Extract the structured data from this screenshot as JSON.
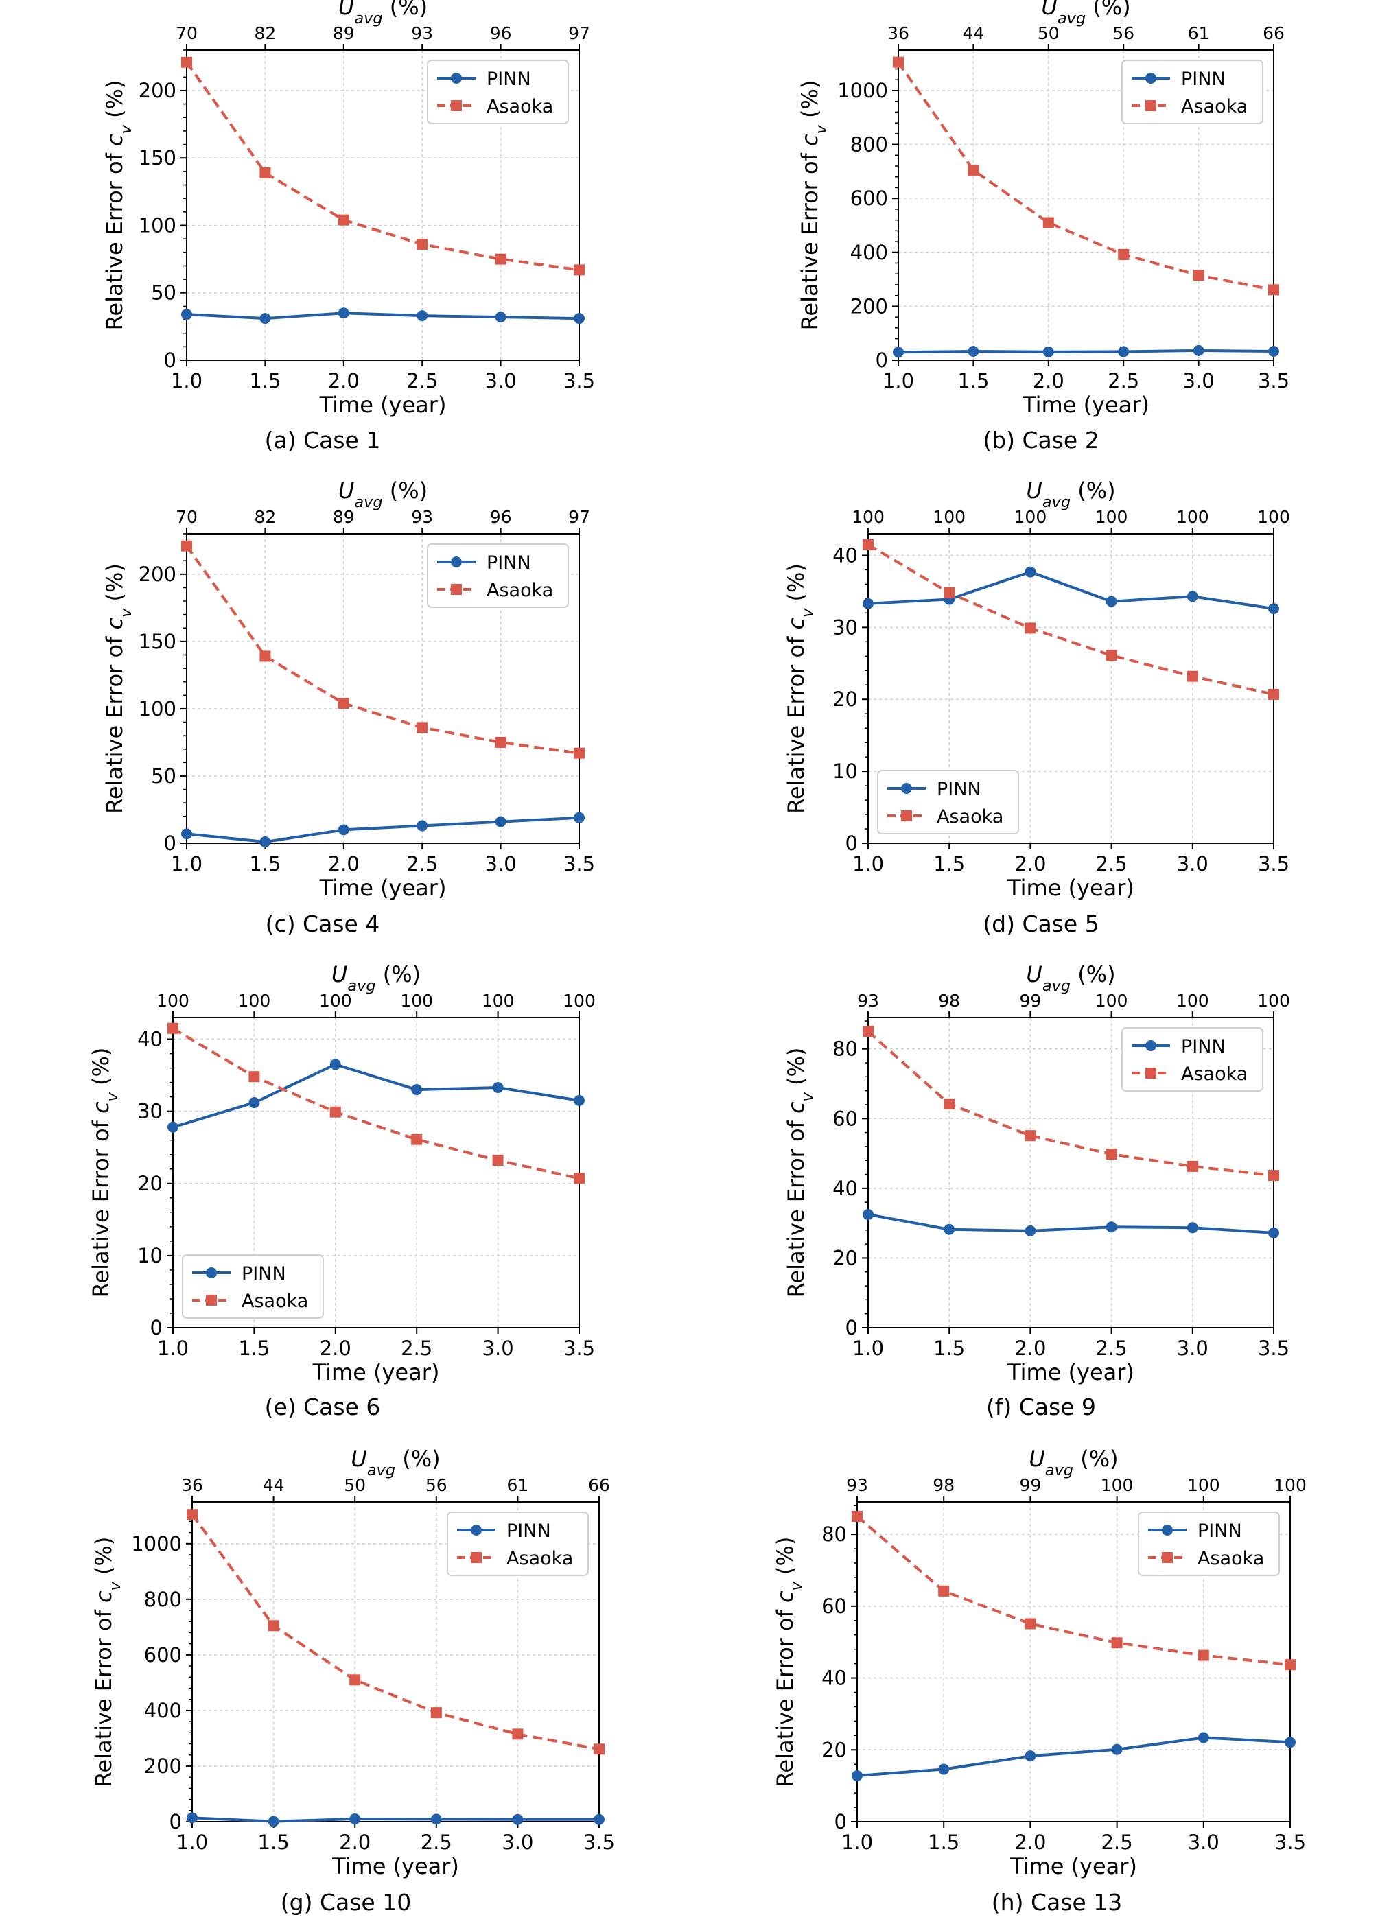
{
  "legend_names": {
    "pinn": "PINN",
    "asaoka": "Asaoka"
  },
  "colors": {
    "pinn": "#2160a8",
    "asaoka": "#d9584a",
    "grid": "#cfcfcf"
  },
  "chart_data": [
    {
      "type": "line",
      "caption": "(a) Case 1",
      "x": [
        1.0,
        1.5,
        2.0,
        2.5,
        3.0,
        3.5
      ],
      "xticks": [
        "1.0",
        "1.5",
        "2.0",
        "2.5",
        "3.0",
        "3.5"
      ],
      "xlabel": "Time (year)",
      "ylabel": "Relative Error of c_v (%)",
      "top_xlabel": "U_avg (%)",
      "top_ticks": [
        "70",
        "82",
        "89",
        "93",
        "96",
        "97"
      ],
      "xlim": [
        1.0,
        3.5
      ],
      "ylim": [
        0,
        230
      ],
      "yticks": [
        0,
        50,
        100,
        150,
        200
      ],
      "legend": "top-right",
      "grid": true,
      "series": [
        {
          "name": "PINN",
          "values": [
            34,
            31,
            35,
            33,
            32,
            31
          ]
        },
        {
          "name": "Asaoka",
          "values": [
            221,
            139,
            104,
            86,
            75,
            67
          ]
        }
      ]
    },
    {
      "type": "line",
      "caption": "(b) Case 2",
      "x": [
        1.0,
        1.5,
        2.0,
        2.5,
        3.0,
        3.5
      ],
      "xticks": [
        "1.0",
        "1.5",
        "2.0",
        "2.5",
        "3.0",
        "3.5"
      ],
      "xlabel": "Time (year)",
      "ylabel": "Relative Error of c_v (%)",
      "top_xlabel": "U_avg (%)",
      "top_ticks": [
        "36",
        "44",
        "50",
        "56",
        "61",
        "66"
      ],
      "xlim": [
        1.0,
        3.5
      ],
      "ylim": [
        0,
        1150
      ],
      "yticks": [
        0,
        200,
        400,
        600,
        800,
        1000
      ],
      "legend": "top-right",
      "grid": true,
      "series": [
        {
          "name": "PINN",
          "values": [
            30,
            33,
            31,
            32,
            36,
            33
          ]
        },
        {
          "name": "Asaoka",
          "values": [
            1105,
            705,
            510,
            392,
            315,
            261
          ]
        }
      ]
    },
    {
      "type": "line",
      "caption": "(c) Case 4",
      "x": [
        1.0,
        1.5,
        2.0,
        2.5,
        3.0,
        3.5
      ],
      "xticks": [
        "1.0",
        "1.5",
        "2.0",
        "2.5",
        "3.0",
        "3.5"
      ],
      "xlabel": "Time (year)",
      "ylabel": "Relative Error of c_v (%)",
      "top_xlabel": "U_avg (%)",
      "top_ticks": [
        "70",
        "82",
        "89",
        "93",
        "96",
        "97"
      ],
      "xlim": [
        1.0,
        3.5
      ],
      "ylim": [
        0,
        230
      ],
      "yticks": [
        0,
        50,
        100,
        150,
        200
      ],
      "legend": "top-right",
      "grid": true,
      "series": [
        {
          "name": "PINN",
          "values": [
            7,
            1,
            10,
            13,
            16,
            19
          ]
        },
        {
          "name": "Asaoka",
          "values": [
            221,
            139,
            104,
            86,
            75,
            67
          ]
        }
      ]
    },
    {
      "type": "line",
      "caption": "(d) Case 5",
      "x": [
        1.0,
        1.5,
        2.0,
        2.5,
        3.0,
        3.5
      ],
      "xticks": [
        "1.0",
        "1.5",
        "2.0",
        "2.5",
        "3.0",
        "3.5"
      ],
      "xlabel": "Time (year)",
      "ylabel": "Relative Error of c_v (%)",
      "top_xlabel": "U_avg (%)",
      "top_ticks": [
        "100",
        "100",
        "100",
        "100",
        "100",
        "100"
      ],
      "xlim": [
        1.0,
        3.5
      ],
      "ylim": [
        0,
        43
      ],
      "yticks": [
        0,
        10,
        20,
        30,
        40
      ],
      "legend": "bottom-left",
      "grid": true,
      "series": [
        {
          "name": "PINN",
          "values": [
            33.3,
            33.9,
            37.7,
            33.6,
            34.3,
            32.6
          ]
        },
        {
          "name": "Asaoka",
          "values": [
            41.5,
            34.8,
            29.9,
            26.1,
            23.2,
            20.7
          ]
        }
      ]
    },
    {
      "type": "line",
      "caption": "(e) Case 6",
      "x": [
        1.0,
        1.5,
        2.0,
        2.5,
        3.0,
        3.5
      ],
      "xticks": [
        "1.0",
        "1.5",
        "2.0",
        "2.5",
        "3.0",
        "3.5"
      ],
      "xlabel": "Time (year)",
      "ylabel": "Relative Error of c_v (%)",
      "top_xlabel": "U_avg (%)",
      "top_ticks": [
        "100",
        "100",
        "100",
        "100",
        "100",
        "100"
      ],
      "xlim": [
        1.0,
        3.5
      ],
      "ylim": [
        0,
        43
      ],
      "yticks": [
        0,
        10,
        20,
        30,
        40
      ],
      "legend": "bottom-left",
      "grid": true,
      "series": [
        {
          "name": "PINN",
          "values": [
            27.8,
            31.2,
            36.5,
            33.0,
            33.3,
            31.5
          ]
        },
        {
          "name": "Asaoka",
          "values": [
            41.5,
            34.8,
            29.9,
            26.1,
            23.2,
            20.7
          ]
        }
      ]
    },
    {
      "type": "line",
      "caption": "(f) Case 9",
      "x": [
        1.0,
        1.5,
        2.0,
        2.5,
        3.0,
        3.5
      ],
      "xticks": [
        "1.0",
        "1.5",
        "2.0",
        "2.5",
        "3.0",
        "3.5"
      ],
      "xlabel": "Time (year)",
      "ylabel": "Relative Error of c_v (%)",
      "top_xlabel": "U_avg (%)",
      "top_ticks": [
        "93",
        "98",
        "99",
        "100",
        "100",
        "100"
      ],
      "xlim": [
        1.0,
        3.5
      ],
      "ylim": [
        0,
        89
      ],
      "yticks": [
        0,
        20,
        40,
        60,
        80
      ],
      "legend": "top-right",
      "grid": true,
      "series": [
        {
          "name": "PINN",
          "values": [
            32.5,
            28.2,
            27.8,
            28.9,
            28.7,
            27.2
          ]
        },
        {
          "name": "Asaoka",
          "values": [
            85,
            64.2,
            55.1,
            49.8,
            46.3,
            43.7
          ]
        }
      ]
    },
    {
      "type": "line",
      "caption": "(g) Case 10",
      "x": [
        1.0,
        1.5,
        2.0,
        2.5,
        3.0,
        3.5
      ],
      "xticks": [
        "1.0",
        "1.5",
        "2.0",
        "2.5",
        "3.0",
        "3.5"
      ],
      "xlabel": "Time (year)",
      "ylabel": "Relative Error of c_v (%)",
      "top_xlabel": "U_avg (%)",
      "top_ticks": [
        "36",
        "44",
        "50",
        "56",
        "61",
        "66"
      ],
      "xlim": [
        1.0,
        3.5
      ],
      "ylim": [
        0,
        1150
      ],
      "yticks": [
        0,
        200,
        400,
        600,
        800,
        1000
      ],
      "legend": "top-right",
      "grid": true,
      "series": [
        {
          "name": "PINN",
          "values": [
            14,
            1,
            10,
            9,
            8,
            8
          ]
        },
        {
          "name": "Asaoka",
          "values": [
            1105,
            705,
            510,
            392,
            315,
            261
          ]
        }
      ]
    },
    {
      "type": "line",
      "caption": "(h) Case 13",
      "x": [
        1.0,
        1.5,
        2.0,
        2.5,
        3.0,
        3.5
      ],
      "xticks": [
        "1.0",
        "1.5",
        "2.0",
        "2.5",
        "3.0",
        "3.5"
      ],
      "xlabel": "Time (year)",
      "ylabel": "Relative Error of c_v (%)",
      "top_xlabel": "U_avg (%)",
      "top_ticks": [
        "93",
        "98",
        "99",
        "100",
        "100",
        "100"
      ],
      "xlim": [
        1.0,
        3.5
      ],
      "ylim": [
        0,
        89
      ],
      "yticks": [
        0,
        20,
        40,
        60,
        80
      ],
      "legend": "top-right",
      "grid": true,
      "series": [
        {
          "name": "PINN",
          "values": [
            12.8,
            14.6,
            18.3,
            20.1,
            23.4,
            22.1
          ]
        },
        {
          "name": "Asaoka",
          "values": [
            85,
            64.2,
            55.1,
            49.8,
            46.3,
            43.7
          ]
        }
      ]
    }
  ]
}
